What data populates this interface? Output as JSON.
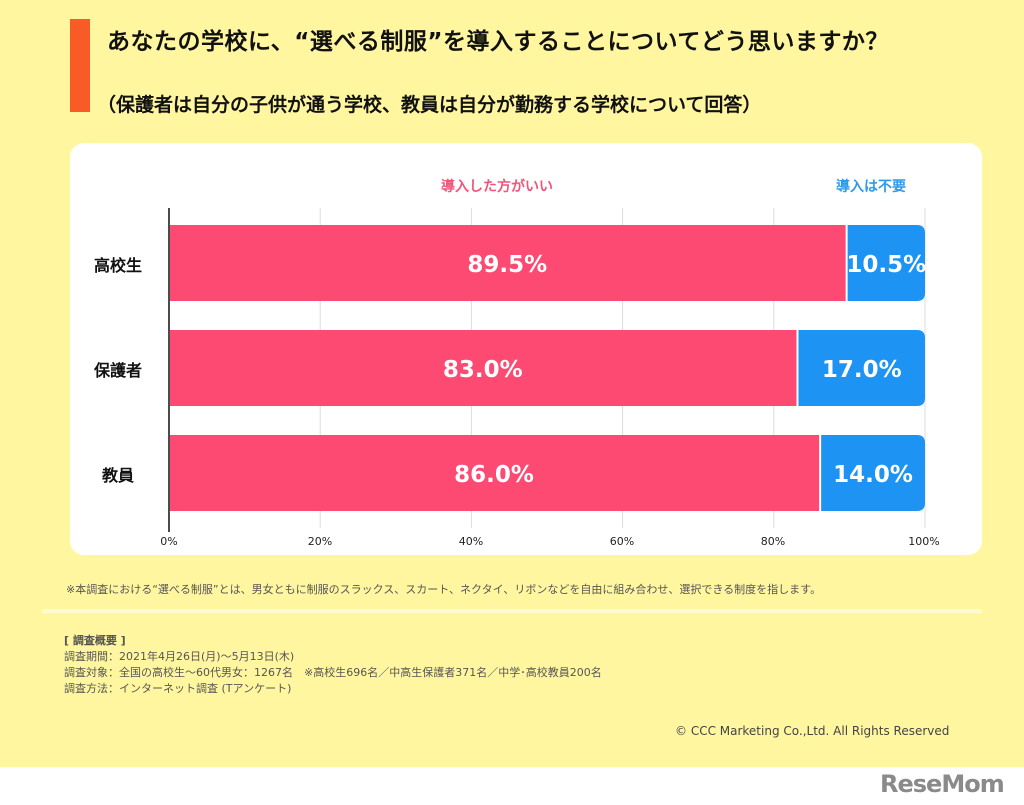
{
  "header": {
    "title": "あなたの学校に、“選べる制服”を導入することについてどう思いますか？",
    "subtitle": "（保護者は自分の子供が通う学校、教員は自分が勤務する学校について回答）"
  },
  "chart_data": {
    "type": "bar",
    "orientation": "horizontal-stacked",
    "title": "あなたの学校に、“選べる制服”を導入することについてどう思いますか？",
    "categories": [
      "高校生",
      "保護者",
      "教員"
    ],
    "series": [
      {
        "name": "導入した方がいい",
        "values": [
          89.5,
          83.0,
          86.0
        ],
        "labels": [
          "89.5%",
          "83.0%",
          "86.0%"
        ],
        "color": "#fc4a73"
      },
      {
        "name": "導入は不要",
        "values": [
          10.5,
          17.0,
          14.0
        ],
        "labels": [
          "10.5%",
          "17.0%",
          "14.0%"
        ],
        "color": "#1d93f3"
      }
    ],
    "xlim": [
      0,
      100
    ],
    "xticks": [
      "0%",
      "20%",
      "40%",
      "60%",
      "80%",
      "100%"
    ],
    "xtick_values": [
      0,
      20,
      40,
      60,
      80,
      100
    ],
    "grid": true,
    "legend": "top"
  },
  "colors": {
    "background": "#fff69f",
    "accent": "#f95b26",
    "positive": "#fc4a73",
    "negative": "#1d93f3"
  },
  "footnote": "※本調査における“選べる制服”とは、男女ともに制服のスラックス、スカート、ネクタイ、リボンなどを自由に組み合わせ、選択できる制度を指します。",
  "survey": {
    "heading": "[ 調査概要 ]",
    "period": "調査期間：2021年4月26日(月)〜5月13日(木)",
    "target": "調査対象：全国の高校生〜60代男女：1267名　※高校生696名／中高生保護者371名／中学･高校教員200名",
    "method": "調査方法：インターネット調査 (Tアンケート)"
  },
  "copyright": "© CCC Marketing Co.,Ltd. All Rights Reserved",
  "logo": "ReseMom"
}
